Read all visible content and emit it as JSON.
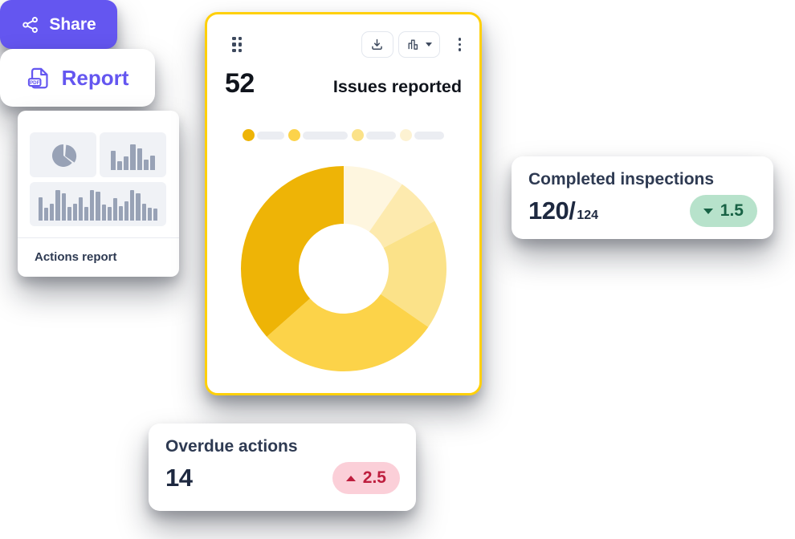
{
  "colors": {
    "purple": "#6456F0",
    "card_bg": "#FFFFFF",
    "yellow_border": "#FFD00A",
    "ink": "#10141C",
    "title_slate": "#2E3A52",
    "value_navy": "#1E2940",
    "icon_slate": "#3E4A5E",
    "button_border": "#E3E7EE",
    "thumb_bg": "#F0F2F6",
    "glyph_gray": "#98A2B6",
    "pill_gray": "#EBEDF2",
    "divider": "#E9EBF0",
    "badge_green_bg": "#B7E2CB",
    "badge_green_text": "#186245",
    "badge_pink_bg": "#FBCFD8",
    "badge_pink_text": "#BE1E3E"
  },
  "share_button": {
    "label": "Share"
  },
  "actions_report_card": {
    "label": "Actions report",
    "mini_charts": {
      "bar_small": [
        62,
        30,
        45,
        85,
        72,
        33,
        48
      ],
      "bar_wide": [
        72,
        38,
        52,
        95,
        85,
        42,
        52,
        72,
        42,
        95,
        88,
        48,
        42,
        70,
        45,
        58,
        95,
        85,
        52,
        40,
        36
      ]
    }
  },
  "issues_card": {
    "total": "52",
    "title": "Issues reported"
  },
  "chart_data": {
    "type": "pie",
    "title": "Issues reported",
    "total": 52,
    "values": [
      5,
      4,
      9,
      15,
      19
    ],
    "colors": [
      "#FEF6DF",
      "#FDEAAE",
      "#FBE289",
      "#FCD349",
      "#EEB406"
    ],
    "start_angle_deg": 0,
    "direction": "clockwise",
    "donut_inner_ratio": 0.44,
    "legend_position": "top",
    "legend_placeholders": [
      {
        "dot_color": "#EEB406",
        "pill_width": 34
      },
      {
        "dot_color": "#FCD34B",
        "pill_width": 56
      },
      {
        "dot_color": "#FBE289",
        "pill_width": 37
      },
      {
        "dot_color": "#FDF2D2",
        "pill_width": 37
      }
    ]
  },
  "report_button": {
    "label": "Report",
    "icon_label": "PDF"
  },
  "completed_card": {
    "title": "Completed inspections",
    "value": "120/",
    "total": "124",
    "badge": {
      "value": "1.5",
      "direction": "down"
    }
  },
  "overdue_card": {
    "title": "Overdue actions",
    "value": "14",
    "badge": {
      "value": "2.5",
      "direction": "up"
    }
  }
}
